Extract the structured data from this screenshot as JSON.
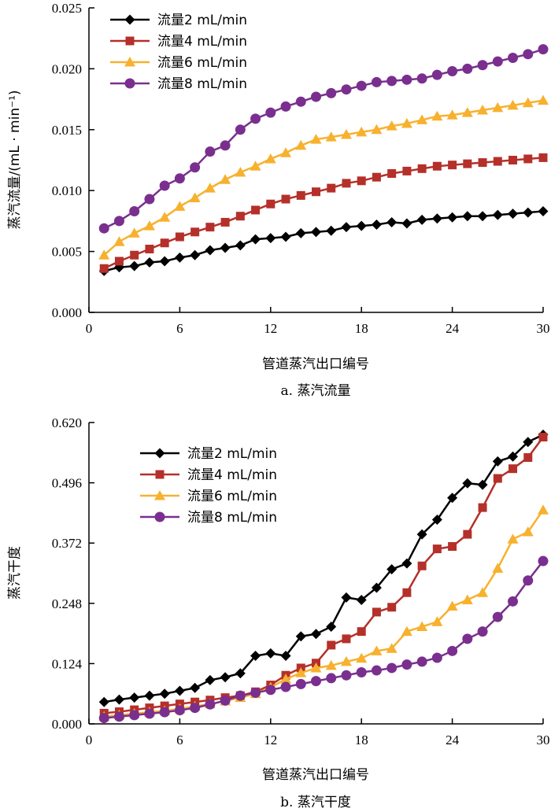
{
  "series_colors": [
    "#000000",
    "#b5302a",
    "#f7b12e",
    "#7a2f8f"
  ],
  "marker_shapes": [
    "diamond",
    "square",
    "triangle",
    "circle"
  ],
  "chart_data": [
    {
      "type": "line",
      "title": "",
      "caption": "a. 蒸汽流量",
      "xlabel": "管道蒸汽出口编号",
      "ylabel": "蒸汽流量/(mL · min⁻¹)",
      "xlim": [
        0,
        30
      ],
      "ylim": [
        0,
        0.025
      ],
      "x_ticks": [
        0,
        6,
        12,
        18,
        24,
        30
      ],
      "x_tick_labels": [
        "0",
        "6",
        "12",
        "18",
        "24",
        "30"
      ],
      "y_ticks": [
        0,
        0.005,
        0.01,
        0.015,
        0.02,
        0.025
      ],
      "y_tick_labels": [
        "0.000",
        "0.005",
        "0.010",
        "0.015",
        "0.020",
        "0.025"
      ],
      "legend_position": "top-left",
      "x": [
        1,
        2,
        3,
        4,
        5,
        6,
        7,
        8,
        9,
        10,
        11,
        12,
        13,
        14,
        15,
        16,
        17,
        18,
        19,
        20,
        21,
        22,
        23,
        24,
        25,
        26,
        27,
        28,
        29,
        30
      ],
      "series": [
        {
          "name": "流量2 mL/min",
          "values": [
            0.0034,
            0.0037,
            0.0038,
            0.0041,
            0.0042,
            0.0045,
            0.0047,
            0.0051,
            0.0053,
            0.0055,
            0.006,
            0.0061,
            0.0062,
            0.0065,
            0.0066,
            0.0067,
            0.007,
            0.0071,
            0.0072,
            0.0074,
            0.0073,
            0.0076,
            0.0077,
            0.0078,
            0.0079,
            0.0079,
            0.008,
            0.0081,
            0.0082,
            0.0083
          ]
        },
        {
          "name": "流量4 mL/min",
          "values": [
            0.0036,
            0.0042,
            0.0047,
            0.0052,
            0.0057,
            0.0062,
            0.0066,
            0.007,
            0.0074,
            0.0079,
            0.0084,
            0.0089,
            0.0093,
            0.0096,
            0.0099,
            0.0102,
            0.0106,
            0.0108,
            0.0111,
            0.0114,
            0.0116,
            0.0118,
            0.012,
            0.0121,
            0.0122,
            0.0123,
            0.0124,
            0.0125,
            0.0126,
            0.0127
          ]
        },
        {
          "name": "流量6 mL/min",
          "values": [
            0.0047,
            0.0058,
            0.0065,
            0.0071,
            0.0078,
            0.0087,
            0.0094,
            0.0102,
            0.0109,
            0.0115,
            0.012,
            0.0126,
            0.0131,
            0.0137,
            0.0142,
            0.0144,
            0.0146,
            0.0148,
            0.015,
            0.0153,
            0.0155,
            0.0158,
            0.0161,
            0.0162,
            0.0164,
            0.0166,
            0.0168,
            0.017,
            0.0172,
            0.0174
          ]
        },
        {
          "name": "流量8 mL/min",
          "values": [
            0.0069,
            0.0075,
            0.0083,
            0.0093,
            0.0104,
            0.011,
            0.0119,
            0.0132,
            0.0137,
            0.015,
            0.0159,
            0.0164,
            0.0169,
            0.0173,
            0.0177,
            0.018,
            0.0183,
            0.0186,
            0.0189,
            0.019,
            0.0191,
            0.0192,
            0.0195,
            0.0198,
            0.02,
            0.0203,
            0.0206,
            0.0209,
            0.0212,
            0.0216
          ]
        }
      ]
    },
    {
      "type": "line",
      "title": "",
      "caption": "b. 蒸汽干度",
      "xlabel": "管道蒸汽出口编号",
      "ylabel": "蒸汽干度",
      "xlim": [
        0,
        30
      ],
      "ylim": [
        0,
        0.62
      ],
      "x_ticks": [
        0,
        6,
        12,
        18,
        24,
        30
      ],
      "x_tick_labels": [
        "0",
        "6",
        "12",
        "18",
        "24",
        "30"
      ],
      "y_ticks": [
        0,
        0.124,
        0.248,
        0.372,
        0.496,
        0.62
      ],
      "y_tick_labels": [
        "0.000",
        "0.124",
        "0.248",
        "0.372",
        "0.496",
        "0.620"
      ],
      "legend_position": "upper-left",
      "x": [
        1,
        2,
        3,
        4,
        5,
        6,
        7,
        8,
        9,
        10,
        11,
        12,
        13,
        14,
        15,
        16,
        17,
        18,
        19,
        20,
        21,
        22,
        23,
        24,
        25,
        26,
        27,
        28,
        29,
        30
      ],
      "series": [
        {
          "name": "流量2 mL/min",
          "values": [
            0.045,
            0.05,
            0.054,
            0.058,
            0.062,
            0.068,
            0.074,
            0.09,
            0.096,
            0.104,
            0.14,
            0.145,
            0.14,
            0.18,
            0.185,
            0.2,
            0.26,
            0.255,
            0.28,
            0.318,
            0.33,
            0.39,
            0.42,
            0.465,
            0.495,
            0.492,
            0.54,
            0.55,
            0.58,
            0.595
          ]
        },
        {
          "name": "流量4 mL/min",
          "values": [
            0.022,
            0.025,
            0.029,
            0.033,
            0.037,
            0.041,
            0.045,
            0.049,
            0.054,
            0.058,
            0.066,
            0.08,
            0.1,
            0.115,
            0.125,
            0.162,
            0.175,
            0.19,
            0.23,
            0.24,
            0.27,
            0.325,
            0.36,
            0.365,
            0.39,
            0.445,
            0.505,
            0.525,
            0.548,
            0.59
          ]
        },
        {
          "name": "流量6 mL/min",
          "values": [
            0.015,
            0.018,
            0.021,
            0.024,
            0.027,
            0.031,
            0.036,
            0.041,
            0.047,
            0.054,
            0.062,
            0.075,
            0.092,
            0.105,
            0.115,
            0.12,
            0.128,
            0.135,
            0.15,
            0.155,
            0.19,
            0.2,
            0.21,
            0.242,
            0.255,
            0.27,
            0.32,
            0.38,
            0.395,
            0.44
          ]
        },
        {
          "name": "流量8 mL/min",
          "values": [
            0.012,
            0.015,
            0.018,
            0.021,
            0.024,
            0.028,
            0.033,
            0.04,
            0.048,
            0.058,
            0.064,
            0.07,
            0.076,
            0.082,
            0.088,
            0.094,
            0.1,
            0.106,
            0.11,
            0.115,
            0.122,
            0.128,
            0.136,
            0.15,
            0.175,
            0.19,
            0.22,
            0.252,
            0.295,
            0.335
          ]
        }
      ]
    }
  ]
}
